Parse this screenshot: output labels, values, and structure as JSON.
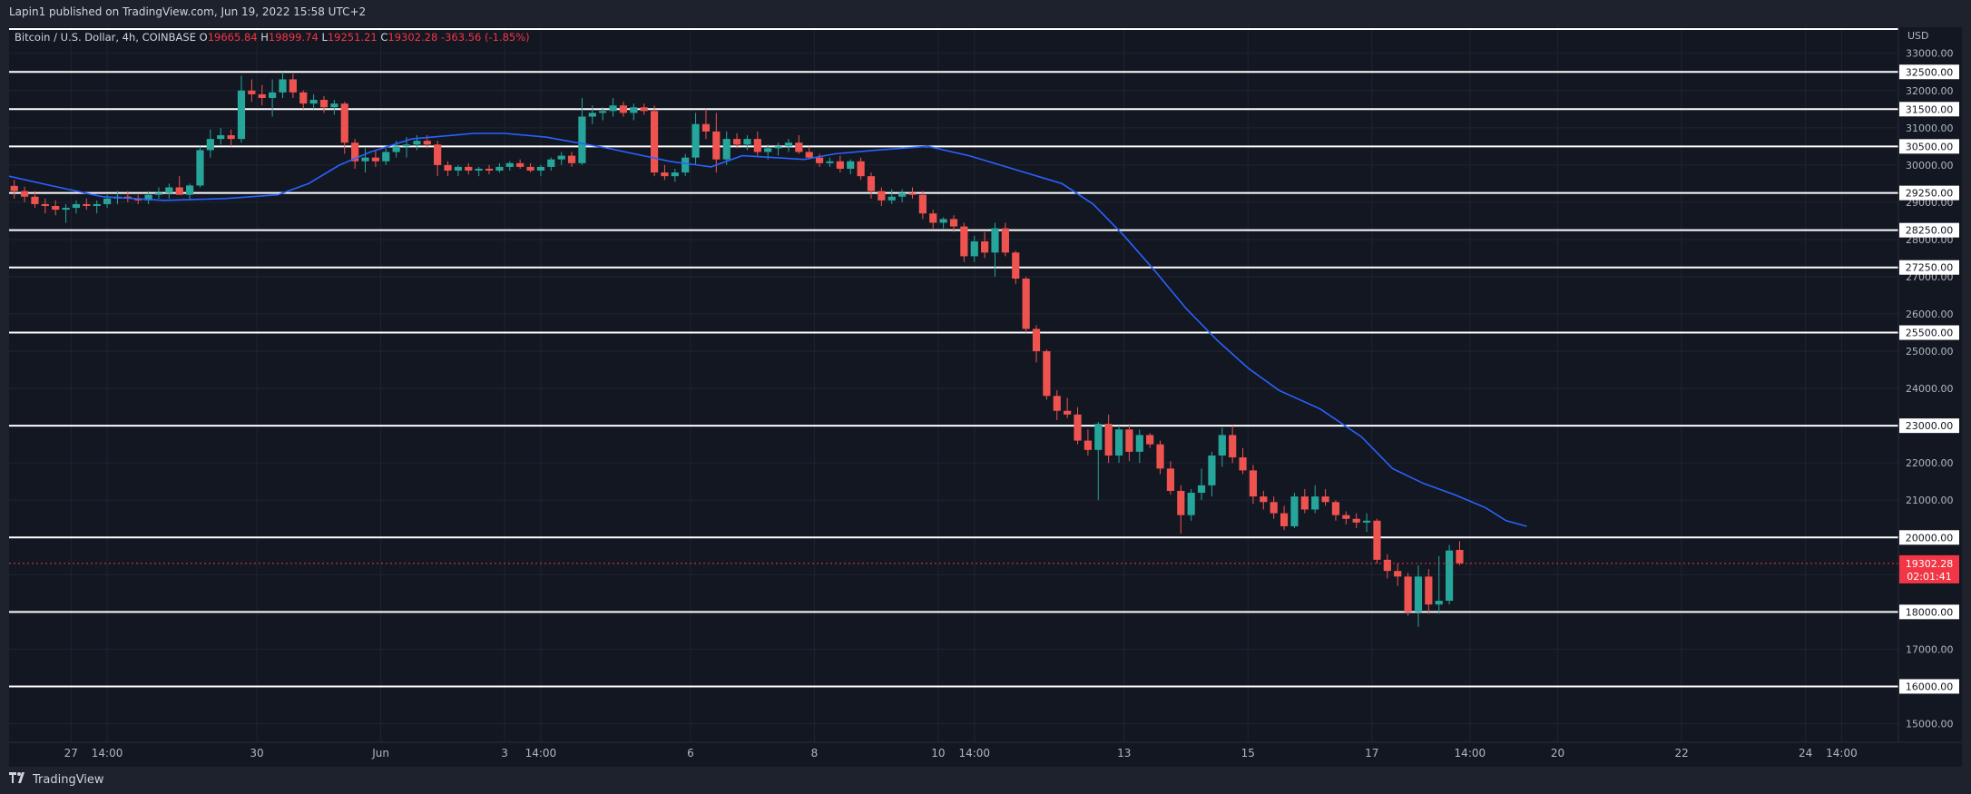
{
  "header": {
    "publisher": "Lapin1 published on TradingView.com, Jun 19, 2022 15:58 UTC+2",
    "symbol": "Bitcoin / U.S. Dollar, 4h, COINBASE",
    "open_label": "O",
    "open": "19665.84",
    "high_label": "H",
    "high": "19899.74",
    "low_label": "L",
    "low": "19251.21",
    "close_label": "C",
    "close": "19302.28",
    "change": "-363.56 (-1.85%)"
  },
  "footer": {
    "brand": "TradingView",
    "logo_icon": "tradingview-logo-icon"
  },
  "chart_data": {
    "type": "candlestick",
    "currency": "USD",
    "y_ticks": [
      "15000.00",
      "16000.00",
      "17000.00",
      "18000.00",
      "19000.00",
      "20000.00",
      "21000.00",
      "22000.00",
      "23000.00",
      "24000.00",
      "25000.00",
      "26000.00",
      "27000.00",
      "28000.00",
      "29000.00",
      "30000.00",
      "31000.00",
      "32000.00",
      "33000.00"
    ],
    "ylim": [
      14500,
      33700
    ],
    "x_ticks": [
      {
        "label": "27",
        "date": "2022-05-27 00:00"
      },
      {
        "label": "14:00",
        "date": "2022-05-27 14:00"
      },
      {
        "label": "30",
        "date": "2022-05-30 00:00"
      },
      {
        "label": "Jun",
        "date": "2022-06-01 00:00"
      },
      {
        "label": "3",
        "date": "2022-06-03 00:00"
      },
      {
        "label": "14:00",
        "date": "2022-06-03 14:00"
      },
      {
        "label": "6",
        "date": "2022-06-06 00:00"
      },
      {
        "label": "8",
        "date": "2022-06-08 00:00"
      },
      {
        "label": "10",
        "date": "2022-06-10 00:00"
      },
      {
        "label": "14:00",
        "date": "2022-06-10 14:00"
      },
      {
        "label": "13",
        "date": "2022-06-13 00:00"
      },
      {
        "label": "15",
        "date": "2022-06-15 00:00"
      },
      {
        "label": "17",
        "date": "2022-06-17 00:00"
      },
      {
        "label": "14:00",
        "date": "2022-06-18 14:00"
      },
      {
        "label": "20",
        "date": "2022-06-20 00:00"
      },
      {
        "label": "22",
        "date": "2022-06-22 00:00"
      },
      {
        "label": "24",
        "date": "2022-06-24 00:00"
      },
      {
        "label": "14:00",
        "date": "2022-06-24 14:00"
      }
    ],
    "x_range": [
      "2022-05-26 00:00",
      "2022-06-25 12:00"
    ],
    "horizontal_levels": [
      32500,
      31500,
      30500,
      29250,
      28250,
      27250,
      25500,
      23000,
      20000,
      18000,
      16000
    ],
    "level_labels": [
      "32500.00",
      "31500.00",
      "30500.00",
      "29250.00",
      "28250.00",
      "27250.00",
      "25500.00",
      "23000.00",
      "20000.00",
      "18000.00",
      "16000.00"
    ],
    "last_price": {
      "value": 19302.28,
      "label": "19302.28",
      "countdown": "02:01:41"
    },
    "colors": {
      "up": "#26a69a",
      "down": "#ef5350",
      "ma": "#2962ff",
      "level": "#ffffff",
      "last": "#f23645",
      "grid": "#1f2430",
      "text": "#b2b5be"
    },
    "candle_series": {
      "start": "2022-05-26 00:00",
      "interval_hours": 4,
      "ohlc": [
        [
          29440,
          29600,
          29100,
          29300
        ],
        [
          29300,
          29420,
          29000,
          29150
        ],
        [
          29150,
          29300,
          28850,
          28950
        ],
        [
          28950,
          29100,
          28700,
          28900
        ],
        [
          28900,
          29050,
          28650,
          28800
        ],
        [
          28800,
          28950,
          28450,
          28850
        ],
        [
          28850,
          29050,
          28700,
          28950
        ],
        [
          28950,
          29100,
          28800,
          28900
        ],
        [
          28900,
          29050,
          28700,
          28950
        ],
        [
          28950,
          29200,
          28850,
          29100
        ],
        [
          29100,
          29300,
          28950,
          29150
        ],
        [
          29150,
          29300,
          29000,
          29100
        ],
        [
          29100,
          29200,
          28950,
          29050
        ],
        [
          29050,
          29300,
          28950,
          29200
        ],
        [
          29200,
          29400,
          29100,
          29250
        ],
        [
          29250,
          29500,
          29100,
          29400
        ],
        [
          29400,
          29700,
          29250,
          29200
        ],
        [
          29200,
          29500,
          29050,
          29450
        ],
        [
          29450,
          30500,
          29400,
          30400
        ],
        [
          30400,
          30950,
          30200,
          30700
        ],
        [
          30700,
          31000,
          30550,
          30800
        ],
        [
          30800,
          30950,
          30500,
          30700
        ],
        [
          30700,
          32400,
          30600,
          32000
        ],
        [
          32000,
          32300,
          31700,
          31900
        ],
        [
          31900,
          32150,
          31600,
          31800
        ],
        [
          31800,
          32300,
          31300,
          31950
        ],
        [
          31950,
          32500,
          31800,
          32300
        ],
        [
          32300,
          32450,
          31800,
          31950
        ],
        [
          31950,
          32000,
          31500,
          31650
        ],
        [
          31650,
          31900,
          31500,
          31750
        ],
        [
          31750,
          31850,
          31400,
          31550
        ],
        [
          31550,
          31750,
          31350,
          31650
        ],
        [
          31650,
          31700,
          30300,
          30600
        ],
        [
          30600,
          30700,
          29900,
          30100
        ],
        [
          30100,
          30450,
          29800,
          30200
        ],
        [
          30200,
          30400,
          29950,
          30100
        ],
        [
          30100,
          30450,
          30000,
          30350
        ],
        [
          30350,
          30650,
          30200,
          30500
        ],
        [
          30500,
          30750,
          30200,
          30550
        ],
        [
          30550,
          30800,
          30400,
          30650
        ],
        [
          30650,
          30800,
          30450,
          30550
        ],
        [
          30550,
          30650,
          29700,
          30000
        ],
        [
          30000,
          30100,
          29700,
          29850
        ],
        [
          29850,
          30000,
          29700,
          29950
        ],
        [
          29950,
          30050,
          29750,
          29850
        ],
        [
          29850,
          29950,
          29700,
          29900
        ],
        [
          29900,
          30000,
          29750,
          29850
        ],
        [
          29850,
          30050,
          29800,
          29950
        ],
        [
          29950,
          30100,
          29850,
          30050
        ],
        [
          30050,
          30150,
          29900,
          29950
        ],
        [
          29950,
          30050,
          29800,
          29850
        ],
        [
          29850,
          30000,
          29700,
          29950
        ],
        [
          29950,
          30200,
          29850,
          30150
        ],
        [
          30150,
          30350,
          30000,
          30250
        ],
        [
          30250,
          30350,
          29950,
          30050
        ],
        [
          30050,
          31800,
          30000,
          31300
        ],
        [
          31300,
          31600,
          31100,
          31400
        ],
        [
          31400,
          31550,
          31200,
          31450
        ],
        [
          31450,
          31800,
          31300,
          31600
        ],
        [
          31600,
          31700,
          31300,
          31400
        ],
        [
          31400,
          31650,
          31200,
          31550
        ],
        [
          31550,
          31650,
          31350,
          31450
        ],
        [
          31450,
          31600,
          29700,
          29800
        ],
        [
          29800,
          30000,
          29600,
          29700
        ],
        [
          29700,
          29900,
          29550,
          29800
        ],
        [
          29800,
          30300,
          29700,
          30200
        ],
        [
          30200,
          31400,
          30000,
          31100
        ],
        [
          31100,
          31500,
          30700,
          30900
        ],
        [
          30900,
          31400,
          29800,
          30150
        ],
        [
          30150,
          30900,
          30000,
          30700
        ],
        [
          30700,
          30850,
          30450,
          30550
        ],
        [
          30550,
          30800,
          30400,
          30700
        ],
        [
          30700,
          30900,
          30250,
          30350
        ],
        [
          30350,
          30550,
          30150,
          30450
        ],
        [
          30450,
          30600,
          30250,
          30500
        ],
        [
          30500,
          30700,
          30350,
          30600
        ],
        [
          30600,
          30800,
          30300,
          30350
        ],
        [
          30350,
          30500,
          30150,
          30200
        ],
        [
          30200,
          30300,
          29950,
          30050
        ],
        [
          30050,
          30200,
          29950,
          30100
        ],
        [
          30100,
          30250,
          29800,
          29900
        ],
        [
          29900,
          30150,
          29750,
          30100
        ],
        [
          30100,
          30200,
          29600,
          29700
        ],
        [
          29700,
          29800,
          29100,
          29300
        ],
        [
          29300,
          29400,
          28900,
          29050
        ],
        [
          29050,
          29350,
          28950,
          29150
        ],
        [
          29150,
          29350,
          29000,
          29250
        ],
        [
          29250,
          29400,
          29100,
          29200
        ],
        [
          29200,
          29300,
          28550,
          28700
        ],
        [
          28700,
          28800,
          28300,
          28450
        ],
        [
          28450,
          28600,
          28300,
          28550
        ],
        [
          28550,
          28650,
          28200,
          28350
        ],
        [
          28350,
          28450,
          27400,
          27550
        ],
        [
          27550,
          28100,
          27400,
          27950
        ],
        [
          27950,
          28200,
          27500,
          27650
        ],
        [
          27650,
          28450,
          27000,
          28300
        ],
        [
          28300,
          28450,
          27550,
          27650
        ],
        [
          27650,
          27700,
          26800,
          26950
        ],
        [
          26950,
          27000,
          25500,
          25600
        ],
        [
          25600,
          25700,
          24700,
          25000
        ],
        [
          25000,
          25050,
          23700,
          23800
        ],
        [
          23800,
          23950,
          23150,
          23400
        ],
        [
          23400,
          23750,
          23200,
          23300
        ],
        [
          23300,
          23500,
          22500,
          22600
        ],
        [
          22600,
          22900,
          22200,
          22350
        ],
        [
          22350,
          23100,
          21000,
          23050
        ],
        [
          23050,
          23300,
          22000,
          22200
        ],
        [
          22200,
          23000,
          22000,
          22900
        ],
        [
          22900,
          23050,
          22050,
          22300
        ],
        [
          22300,
          22900,
          22000,
          22750
        ],
        [
          22750,
          22800,
          22400,
          22500
        ],
        [
          22500,
          22600,
          21700,
          21850
        ],
        [
          21850,
          22050,
          21150,
          21250
        ],
        [
          21250,
          21400,
          20100,
          20600
        ],
        [
          20600,
          21300,
          20450,
          21200
        ],
        [
          21200,
          21850,
          21000,
          21400
        ],
        [
          21400,
          22300,
          21100,
          22200
        ],
        [
          22200,
          22950,
          21900,
          22750
        ],
        [
          22750,
          23000,
          22000,
          22150
        ],
        [
          22150,
          22400,
          21700,
          21800
        ],
        [
          21800,
          21950,
          20900,
          21100
        ],
        [
          21100,
          21250,
          20750,
          20950
        ],
        [
          20950,
          21100,
          20500,
          20650
        ],
        [
          20650,
          20850,
          20200,
          20300
        ],
        [
          20300,
          21200,
          20250,
          21100
        ],
        [
          21100,
          21300,
          20650,
          20750
        ],
        [
          20750,
          21400,
          20650,
          21100
        ],
        [
          21100,
          21300,
          20850,
          20950
        ],
        [
          20950,
          21000,
          20450,
          20600
        ],
        [
          20600,
          20700,
          20350,
          20500
        ],
        [
          20500,
          20650,
          20250,
          20400
        ],
        [
          20400,
          20650,
          20150,
          20450
        ],
        [
          20450,
          20500,
          19300,
          19400
        ],
        [
          19400,
          19550,
          18900,
          19100
        ],
        [
          19100,
          19300,
          18700,
          18950
        ],
        [
          18950,
          19050,
          17900,
          18000
        ],
        [
          18000,
          19250,
          17600,
          18950
        ],
        [
          18950,
          19150,
          17950,
          18200
        ],
        [
          18200,
          19500,
          17950,
          18300
        ],
        [
          18300,
          19800,
          18200,
          19650
        ],
        [
          19665.84,
          19899.74,
          19251.21,
          19302.28
        ]
      ]
    },
    "ma_series": {
      "name": "",
      "points": [
        [
          "2022-05-26 00:00",
          29700
        ],
        [
          "2022-05-26 16:00",
          29450
        ],
        [
          "2022-05-27 12:00",
          29150
        ],
        [
          "2022-05-28 12:00",
          29050
        ],
        [
          "2022-05-29 12:00",
          29100
        ],
        [
          "2022-05-30 08:00",
          29200
        ],
        [
          "2022-05-30 20:00",
          29500
        ],
        [
          "2022-05-31 08:00",
          30000
        ],
        [
          "2022-05-31 20:00",
          30350
        ],
        [
          "2022-06-01 12:00",
          30700
        ],
        [
          "2022-06-02 12:00",
          30850
        ],
        [
          "2022-06-03 00:00",
          30850
        ],
        [
          "2022-06-03 16:00",
          30750
        ],
        [
          "2022-06-04 16:00",
          30450
        ],
        [
          "2022-06-05 16:00",
          30100
        ],
        [
          "2022-06-06 08:00",
          29950
        ],
        [
          "2022-06-06 20:00",
          30250
        ],
        [
          "2022-06-07 08:00",
          30200
        ],
        [
          "2022-06-07 20:00",
          30150
        ],
        [
          "2022-06-08 08:00",
          30300
        ],
        [
          "2022-06-09 00:00",
          30400
        ],
        [
          "2022-06-09 20:00",
          30500
        ],
        [
          "2022-06-10 12:00",
          30250
        ],
        [
          "2022-06-11 00:00",
          30000
        ],
        [
          "2022-06-11 12:00",
          29750
        ],
        [
          "2022-06-12 00:00",
          29500
        ],
        [
          "2022-06-12 12:00",
          28950
        ],
        [
          "2022-06-13 00:00",
          28100
        ],
        [
          "2022-06-13 12:00",
          27150
        ],
        [
          "2022-06-14 00:00",
          26150
        ],
        [
          "2022-06-14 12:00",
          25300
        ],
        [
          "2022-06-15 00:00",
          24550
        ],
        [
          "2022-06-15 12:00",
          23950
        ],
        [
          "2022-06-16 04:00",
          23450
        ],
        [
          "2022-06-16 20:00",
          22700
        ],
        [
          "2022-06-17 08:00",
          21850
        ],
        [
          "2022-06-17 20:00",
          21450
        ],
        [
          "2022-06-18 08:00",
          21150
        ],
        [
          "2022-06-18 20:00",
          20800
        ],
        [
          "2022-06-19 04:00",
          20450
        ],
        [
          "2022-06-19 12:00",
          20300
        ]
      ]
    }
  }
}
